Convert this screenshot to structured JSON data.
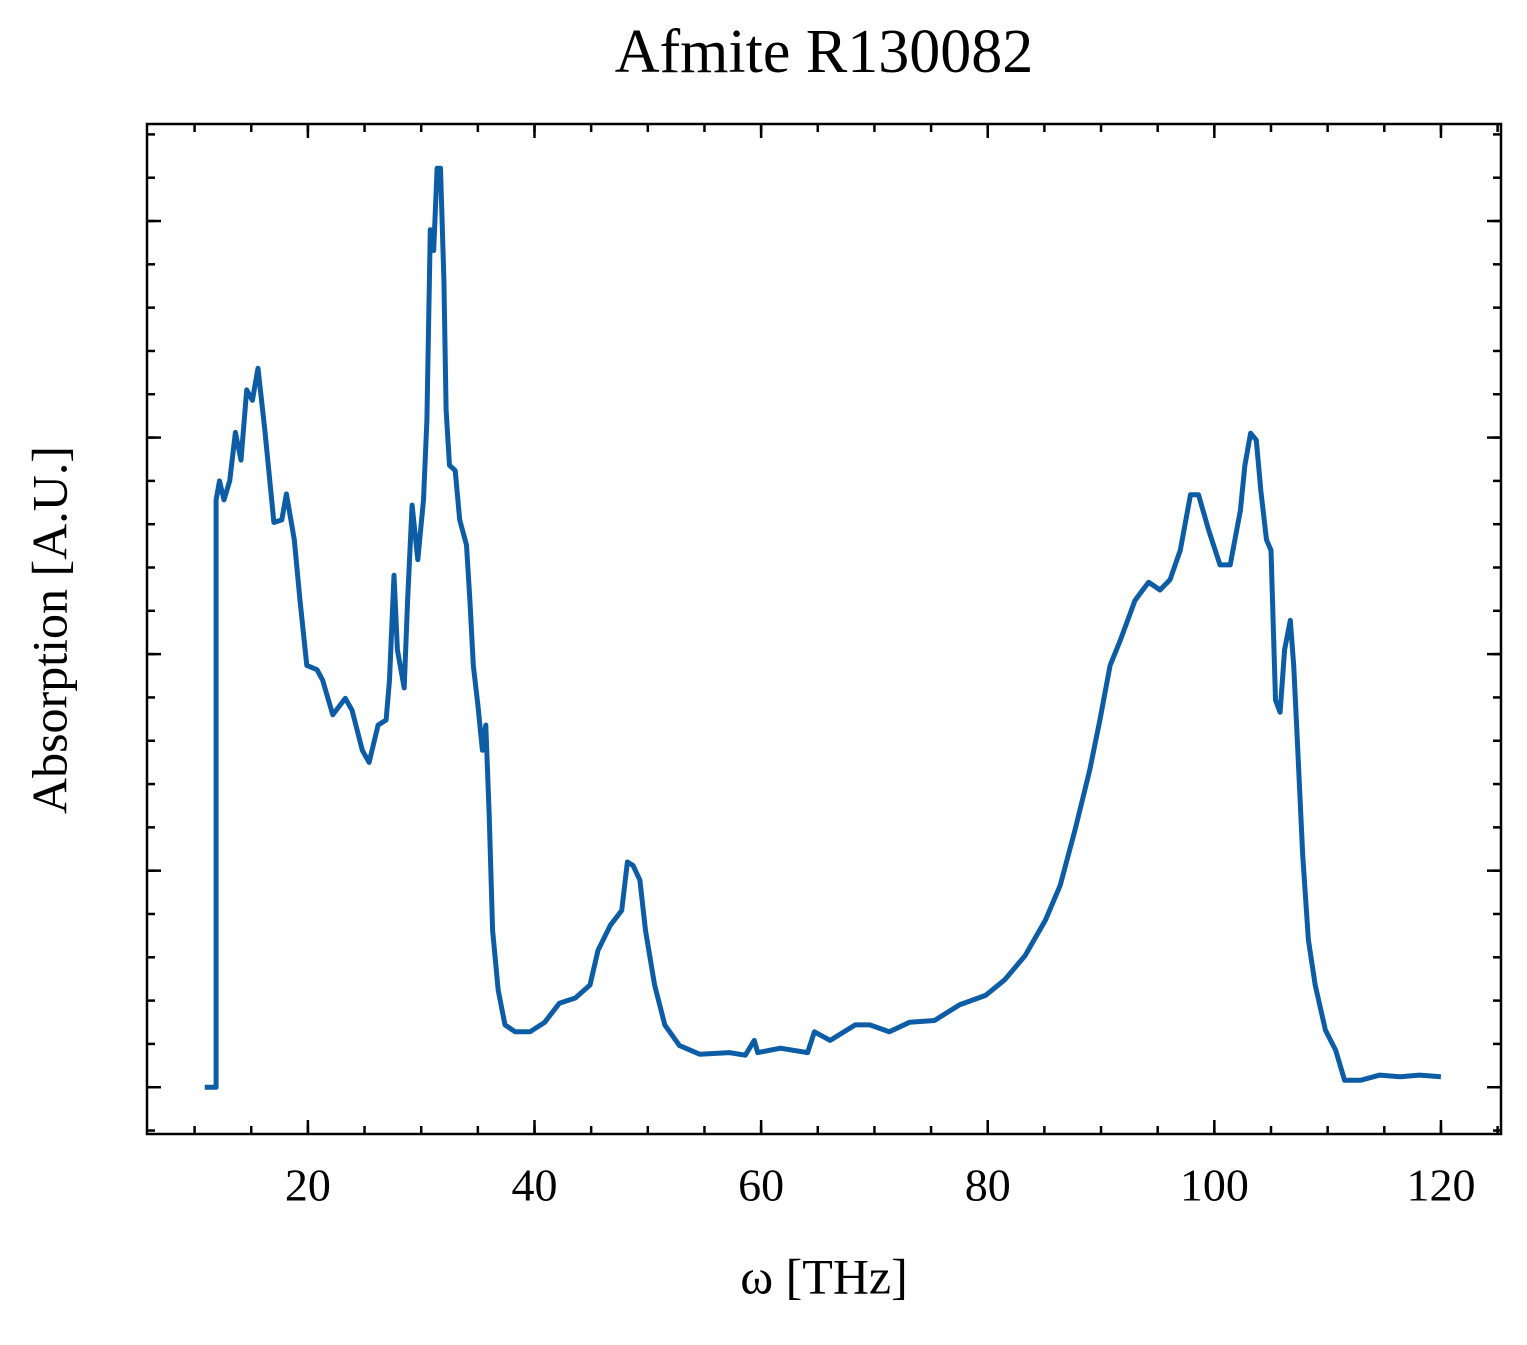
{
  "chart_data": {
    "type": "line",
    "title": "Afmite R130082",
    "xlabel": "ω [THz]",
    "ylabel": "Absorption [A.U.]",
    "xlim": [
      5.8,
      125.3
    ],
    "xticks": [
      20,
      40,
      60,
      80,
      100,
      120
    ],
    "ylim": [
      -0.054,
      1.112
    ],
    "yticks": [
      0,
      0.25,
      0.5,
      0.75,
      1.0
    ],
    "show_ytick_labels": false,
    "xminor_step": 5,
    "yminor_step": 0.05,
    "ticks_inward": true,
    "mirror_ticks": true,
    "series": [
      {
        "name": "Afmite R130082",
        "color": "#0c5da5",
        "x": [
          10.9,
          11.9,
          11.9,
          12.2,
          12.6,
          13.1,
          13.6,
          14.1,
          14.6,
          15.1,
          15.6,
          16.2,
          17.0,
          17.7,
          18.1,
          18.8,
          19.3,
          19.9,
          20.8,
          21.3,
          22.2,
          23.3,
          23.9,
          24.8,
          25.4,
          26.2,
          26.9,
          27.2,
          27.6,
          27.9,
          28.5,
          28.8,
          29.2,
          29.7,
          30.2,
          30.5,
          30.8,
          31.1,
          31.4,
          31.7,
          32.0,
          32.2,
          32.5,
          33.0,
          33.4,
          34.0,
          34.3,
          34.6,
          35.0,
          35.4,
          35.7,
          36.0,
          36.3,
          36.8,
          37.4,
          38.3,
          39.6,
          40.9,
          42.2,
          43.6,
          44.9,
          45.6,
          46.7,
          47.7,
          48.2,
          48.7,
          49.3,
          49.8,
          50.6,
          51.5,
          52.8,
          54.6,
          57.2,
          58.6,
          59.4,
          59.7,
          61.7,
          64.1,
          64.7,
          66.1,
          68.3,
          69.6,
          71.3,
          73.1,
          75.3,
          77.5,
          79.8,
          81.5,
          83.3,
          85.1,
          86.4,
          87.7,
          89.0,
          89.9,
          90.8,
          91.7,
          93.0,
          94.2,
          95.2,
          96.1,
          97.0,
          97.9,
          98.6,
          99.5,
          100.5,
          101.4,
          102.3,
          102.7,
          103.2,
          103.7,
          104.1,
          104.6,
          105.0,
          105.4,
          105.8,
          106.2,
          106.7,
          107.0,
          107.3,
          107.8,
          108.3,
          108.9,
          109.8,
          110.7,
          111.5,
          112.9,
          114.6,
          116.4,
          118.1,
          120.0
        ],
        "values": [
          0,
          0,
          0.678,
          0.7,
          0.678,
          0.7,
          0.756,
          0.724,
          0.805,
          0.793,
          0.83,
          0.759,
          0.652,
          0.655,
          0.685,
          0.632,
          0.562,
          0.487,
          0.482,
          0.47,
          0.43,
          0.449,
          0.435,
          0.389,
          0.375,
          0.418,
          0.424,
          0.47,
          0.591,
          0.505,
          0.461,
          0.562,
          0.672,
          0.609,
          0.678,
          0.77,
          0.99,
          0.966,
          1.061,
          1.061,
          0.932,
          0.782,
          0.718,
          0.712,
          0.655,
          0.626,
          0.562,
          0.487,
          0.441,
          0.389,
          0.418,
          0.314,
          0.181,
          0.112,
          0.072,
          0.064,
          0.064,
          0.075,
          0.097,
          0.103,
          0.118,
          0.158,
          0.187,
          0.204,
          0.26,
          0.256,
          0.239,
          0.181,
          0.118,
          0.072,
          0.048,
          0.038,
          0.04,
          0.037,
          0.054,
          0.04,
          0.045,
          0.04,
          0.064,
          0.054,
          0.072,
          0.072,
          0.064,
          0.075,
          0.077,
          0.095,
          0.106,
          0.124,
          0.152,
          0.193,
          0.233,
          0.297,
          0.366,
          0.424,
          0.487,
          0.516,
          0.562,
          0.583,
          0.574,
          0.586,
          0.62,
          0.684,
          0.684,
          0.643,
          0.603,
          0.603,
          0.666,
          0.718,
          0.755,
          0.747,
          0.689,
          0.632,
          0.62,
          0.447,
          0.433,
          0.505,
          0.539,
          0.487,
          0.406,
          0.268,
          0.17,
          0.118,
          0.066,
          0.043,
          0.008,
          0.008,
          0.014,
          0.012,
          0.014,
          0.012
        ]
      }
    ]
  }
}
